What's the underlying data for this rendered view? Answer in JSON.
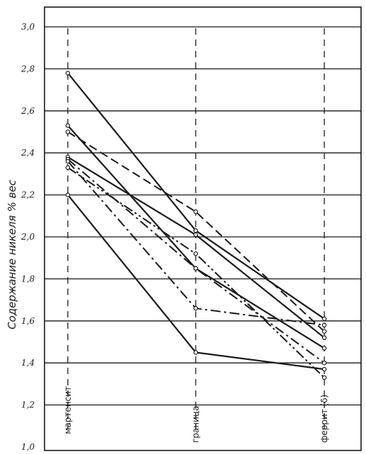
{
  "chart_data": {
    "type": "line",
    "title": "",
    "ylabel": "Содержание никеля % вес",
    "ylim": [
      1.0,
      3.0
    ],
    "yticks": [
      "1,0",
      "1,2",
      "1,4",
      "1,6",
      "1,8",
      "2,0",
      "2,2",
      "2,4",
      "2,6",
      "2,8",
      "3,0"
    ],
    "grid": true,
    "categories": [
      "мартенсит",
      "граница",
      "феррит (δ)"
    ],
    "series": [
      {
        "style": "solid",
        "values": [
          2.78,
          2.03,
          1.61
        ]
      },
      {
        "style": "solid",
        "values": [
          2.53,
          1.85,
          1.47
        ]
      },
      {
        "style": "solid",
        "values": [
          2.38,
          2.01,
          1.52
        ]
      },
      {
        "style": "solid",
        "values": [
          2.2,
          1.45,
          1.37
        ]
      },
      {
        "style": "dash",
        "values": [
          2.5,
          2.12,
          1.55
        ]
      },
      {
        "style": "dashdot",
        "values": [
          2.37,
          1.85,
          1.4
        ]
      },
      {
        "style": "dashdot",
        "values": [
          2.36,
          1.66,
          1.58
        ]
      },
      {
        "style": "dashdotdot",
        "values": [
          2.33,
          1.92,
          1.33
        ]
      }
    ],
    "line_color": "#1a1a1a"
  }
}
